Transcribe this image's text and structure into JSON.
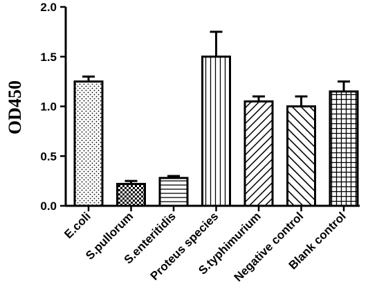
{
  "chart_data": {
    "type": "bar",
    "title": "",
    "xlabel": "",
    "ylabel": "OD450",
    "ylim": [
      0,
      2.0
    ],
    "yticks": [
      "0.0",
      "0.5",
      "1.0",
      "1.5",
      "2.0"
    ],
    "grid": false,
    "categories": [
      "E.coli",
      "S.pullorum",
      "S.enteritidis",
      "Proteus species",
      "S.typhimurium",
      "Negative control",
      "Blank control"
    ],
    "values": [
      1.25,
      0.22,
      0.28,
      1.5,
      1.05,
      1.0,
      1.15
    ],
    "errors": [
      0.05,
      0.03,
      0.02,
      0.25,
      0.05,
      0.1,
      0.1
    ],
    "patterns": [
      "dots",
      "checker",
      "horizontal-lines",
      "vertical-lines",
      "diagonal-lines-ne",
      "diagonal-lines-nw",
      "grid"
    ],
    "bar_color": "#000000",
    "background": "#ffffff"
  }
}
